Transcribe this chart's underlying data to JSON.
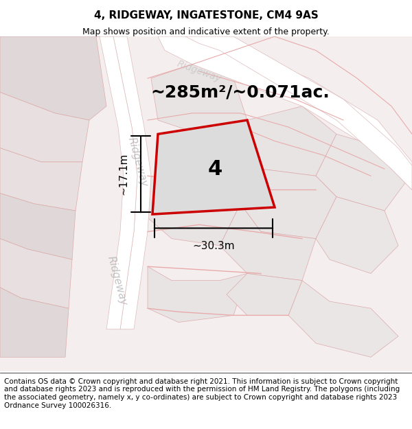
{
  "title": "4, RIDGEWAY, INGATESTONE, CM4 9AS",
  "subtitle": "Map shows position and indicative extent of the property.",
  "area_text": "~285m²/~0.071ac.",
  "plot_number": "4",
  "dim_width": "~30.3m",
  "dim_height": "~17.1m",
  "footer": "Contains OS data © Crown copyright and database right 2021. This information is subject to Crown copyright and database rights 2023 and is reproduced with the permission of HM Land Registry. The polygons (including the associated geometry, namely x, y co-ordinates) are subject to Crown copyright and database rights 2023 Ordnance Survey 100026316.",
  "background_color": "#f5f0f0",
  "map_background": "#f7f2f2",
  "road_color": "#ffffff",
  "plot_fill": "#e8e8e8",
  "plot_outline": "#cc0000",
  "road_label": "Ridgeway",
  "title_fontsize": 11,
  "subtitle_fontsize": 9,
  "footer_fontsize": 7.5
}
